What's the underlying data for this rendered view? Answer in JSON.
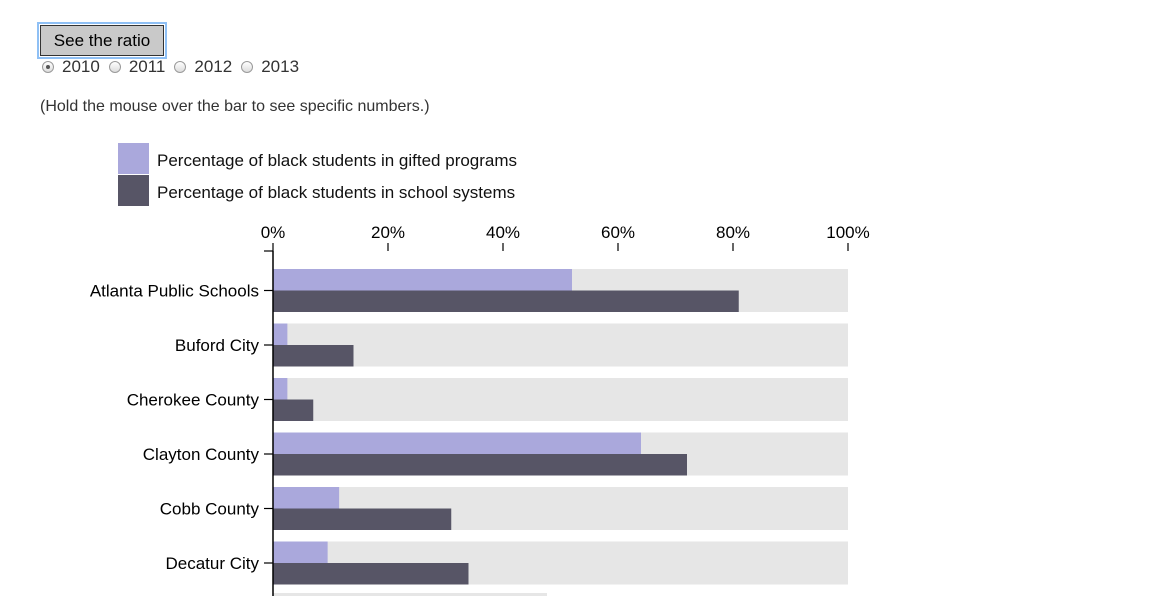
{
  "controls": {
    "ratio_button_label": "See the ratio",
    "years": [
      "2010",
      "2011",
      "2012",
      "2013"
    ],
    "selected_year": "2010"
  },
  "hint_text": "(Hold the mouse over the bar to see specific numbers.)",
  "colors": {
    "gifted": "#aaa8dc",
    "school": "#575566",
    "background_bar": "#e6e6e6"
  },
  "chart_data": {
    "type": "bar",
    "orientation": "horizontal",
    "title": "",
    "xlabel": "",
    "ylabel": "",
    "xlim": [
      0,
      100
    ],
    "x_ticks": [
      "0%",
      "20%",
      "40%",
      "60%",
      "80%",
      "100%"
    ],
    "legend_position": "top-left",
    "categories": [
      "Atlanta Public Schools",
      "Buford City",
      "Cherokee County",
      "Clayton County",
      "Cobb County",
      "Decatur City"
    ],
    "series": [
      {
        "name": "Percentage of black students in gifted programs",
        "values": [
          52,
          2.5,
          2.5,
          64,
          11.5,
          9.5
        ]
      },
      {
        "name": "Percentage of black students in school systems",
        "values": [
          81,
          14,
          7,
          72,
          31,
          34
        ]
      }
    ]
  }
}
